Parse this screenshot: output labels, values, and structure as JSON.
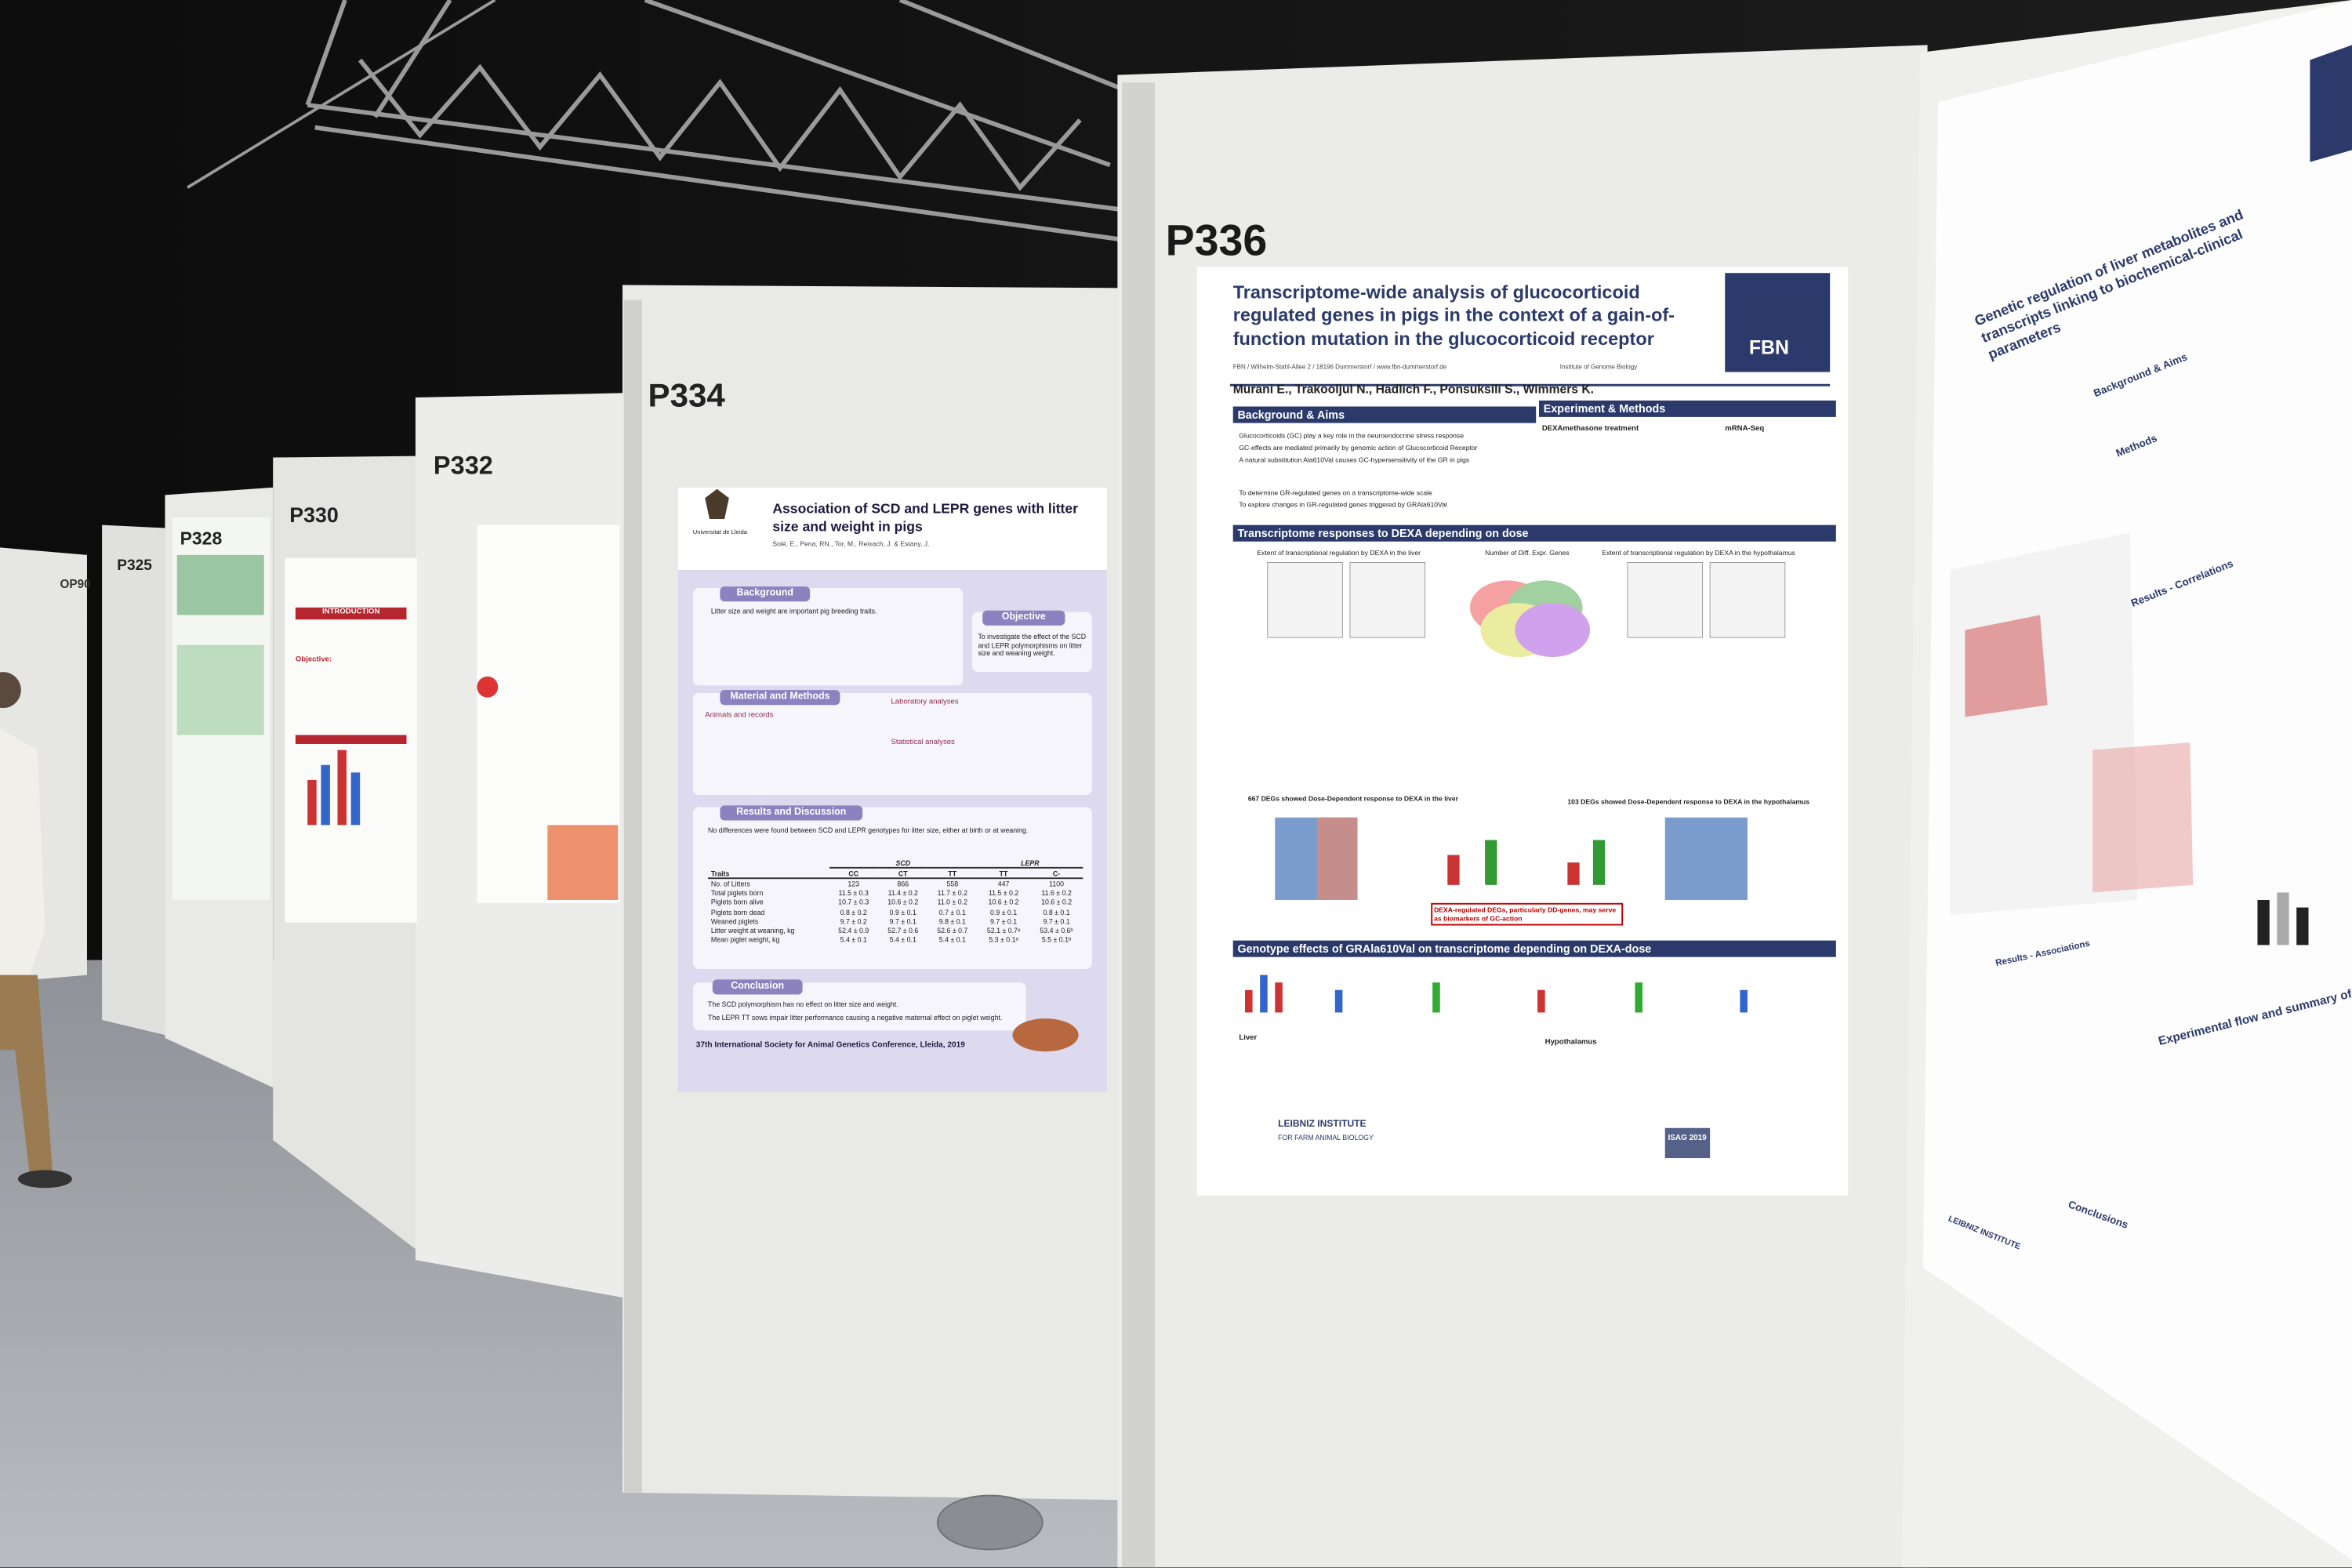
{
  "boards": {
    "op90": "OP90",
    "p325": "P325",
    "p328": "P328",
    "p330": "P330",
    "p332": "P332",
    "p334": "P334",
    "p336": "P336"
  },
  "p330_poster": {
    "section1": "INTRODUCTION",
    "section2": "Objective:"
  },
  "p334_poster": {
    "institution": "Universitat de Lleida",
    "title": "Association of SCD and LEPR genes with litter size and weight in pigs",
    "authors": "Solé, E., Pena, RN., Tor, M., Reixach, J. & Estany, J.",
    "background_header": "Background",
    "background_text": "Litter size and weight are important pig breeding traits.",
    "objective_header": "Objective",
    "objective_text": "To investigate the effect of the SCD and LEPR polymorphisms on litter size and weaning weight.",
    "methods_header": "Material and Methods",
    "methods_sub1": "Animals and records",
    "methods_sub2": "Laboratory analyses",
    "methods_sub3": "Statistical analyses",
    "results_header": "Results and Discussion",
    "results_text": "No differences were found between SCD and LEPR genotypes for litter size, either at birth or at weaning.",
    "table": {
      "groups": [
        "SCD",
        "LEPR"
      ],
      "header": [
        "Traits",
        "CC",
        "CT",
        "TT",
        "TT",
        "C-"
      ],
      "rows": [
        [
          "No. of Litters",
          "123",
          "866",
          "558",
          "447",
          "1100"
        ],
        [
          "Total piglets born",
          "11.5 ± 0.3",
          "11.4 ± 0.2",
          "11.7 ± 0.2",
          "11.5 ± 0.2",
          "11.6 ± 0.2"
        ],
        [
          "Piglets born alive",
          "10.7 ± 0.3",
          "10.6 ± 0.2",
          "11.0 ± 0.2",
          "10.6 ± 0.2",
          "10.6 ± 0.2"
        ],
        [
          "Piglets born dead",
          "0.8 ± 0.2",
          "0.9 ± 0.1",
          "0.7 ± 0.1",
          "0.9 ± 0.1",
          "0.8 ± 0.1"
        ],
        [
          "Weaned piglets",
          "9.7 ± 0.2",
          "9.7 ± 0.1",
          "9.8 ± 0.1",
          "9.7 ± 0.1",
          "9.7 ± 0.1"
        ],
        [
          "Litter weight at weaning, kg",
          "52.4 ± 0.9",
          "52.7 ± 0.6",
          "52.6 ± 0.7",
          "52.1 ± 0.7ᵃ",
          "53.4 ± 0.6ᵇ"
        ],
        [
          "Mean piglet weight, kg",
          "5.4 ± 0.1",
          "5.4 ± 0.1",
          "5.4 ± 0.1",
          "5.3 ± 0.1ᵃ",
          "5.5 ± 0.1ᵇ"
        ]
      ]
    },
    "conclusion_header": "Conclusion",
    "conclusion_1": "The SCD polymorphism has no effect on litter size and weight.",
    "conclusion_2": "The LEPR TT sows impair litter performance causing a negative maternal effect on piglet weight.",
    "footer": "37th International Society for Animal Genetics Conference, Lleida, 2019"
  },
  "p336_poster": {
    "title": "Transcriptome-wide analysis of glucocorticoid regulated genes in pigs in the context of a gain-of-function mutation in the glucocorticoid receptor",
    "logo": "FBN",
    "affiliation": "FBN / Wilhelm-Stahl-Allee 2 / 18196 Dummerstorf / www.fbn-dummerstorf.de",
    "institute": "Institute of Genome Biology",
    "authors": "Murani E., Trakooljul N., Hadlich F., Ponsuksili S., Wimmers K.",
    "background_header": "Background & Aims",
    "background_1": "Glucocorticoids (GC) play a key role in the neuroendocrine stress response",
    "background_2": "GC-effects are mediated primarily by genomic action of Glucocorticoid Receptor",
    "background_3": "A natural substitution Ala610Val causes GC-hypersensitivity of the GR in pigs",
    "aim_1": "To determine GR-regulated genes on a transcriptome-wide scale",
    "aim_2": "To explore changes in GR-regulated genes triggered by GRAla610Val",
    "methods_header": "Experiment & Methods",
    "methods_1": "DEXAmethasone treatment",
    "methods_2": "mRNA-Seq",
    "responses_header": "Transcriptome responses to DEXA depending on dose",
    "liver_plot": "Extent of transcriptional regulation by DEXA in the liver",
    "venn_title": "Number of Diff. Expr. Genes",
    "hypo_plot": "Extent of transcriptional regulation by DEXA in the hypothalamus",
    "liver_dd": "667 DEGs showed Dose-Dependent response to DEXA in the liver",
    "hypo_dd": "103 DEGs showed Dose-Dependent response to DEXA in the hypothalamus",
    "biomarker": "DEXA-regulated DEGs, particularly DD-genes, may serve as biomarkers of GC-action",
    "genotype_header": "Genotype effects of GRAla610Val on transcriptome depending on DEXA-dose",
    "liver_label": "Liver",
    "hypo_label": "Hypothalamus",
    "footer_1": "LEIBNIZ INSTITUTE",
    "footer_2": "FOR FARM ANIMAL BIOLOGY",
    "isag": "ISAG 2019"
  },
  "right_poster": {
    "title": "Genetic regulation of liver metabolites and transcripts linking to biochemical-clinical parameters",
    "background_header": "Background & Aims",
    "methods_header": "Methods",
    "correlations_header": "Results - Correlations",
    "associations_header": "Results - Associations",
    "flow_header": "Experimental flow and summary of results",
    "conclusions_header": "Conclusions",
    "footer": "LEIBNIZ INSTITUTE"
  }
}
